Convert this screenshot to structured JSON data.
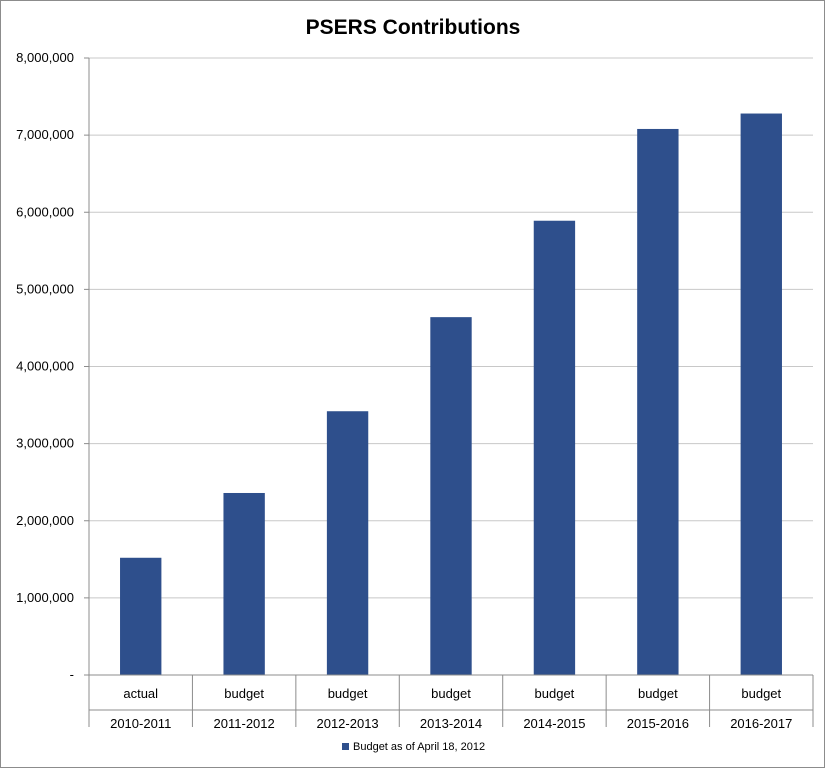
{
  "chart_data": {
    "type": "bar",
    "title": "PSERS Contributions",
    "xlabel": "",
    "ylabel": "",
    "ylim": [
      0,
      8000000
    ],
    "y_ticks": [
      {
        "value": 0,
        "label": "-"
      },
      {
        "value": 1000000,
        "label": "1,000,000"
      },
      {
        "value": 2000000,
        "label": "2,000,000"
      },
      {
        "value": 3000000,
        "label": "3,000,000"
      },
      {
        "value": 4000000,
        "label": "4,000,000"
      },
      {
        "value": 5000000,
        "label": "5,000,000"
      },
      {
        "value": 6000000,
        "label": "6,000,000"
      },
      {
        "value": 7000000,
        "label": "7,000,000"
      },
      {
        "value": 8000000,
        "label": "8,000,000"
      }
    ],
    "categories": [
      {
        "group": "actual",
        "label": "2010-2011"
      },
      {
        "group": "budget",
        "label": "2011-2012"
      },
      {
        "group": "budget",
        "label": "2012-2013"
      },
      {
        "group": "budget",
        "label": "2013-2014"
      },
      {
        "group": "budget",
        "label": "2014-2015"
      },
      {
        "group": "budget",
        "label": "2015-2016"
      },
      {
        "group": "budget",
        "label": "2016-2017"
      }
    ],
    "series": [
      {
        "name": "Budget as of April 18, 2012",
        "color": "#2e4f8c",
        "values": [
          1520000,
          2360000,
          3420000,
          4640000,
          5890000,
          7080000,
          7280000
        ]
      }
    ],
    "grid": true,
    "legend_position": "bottom"
  }
}
